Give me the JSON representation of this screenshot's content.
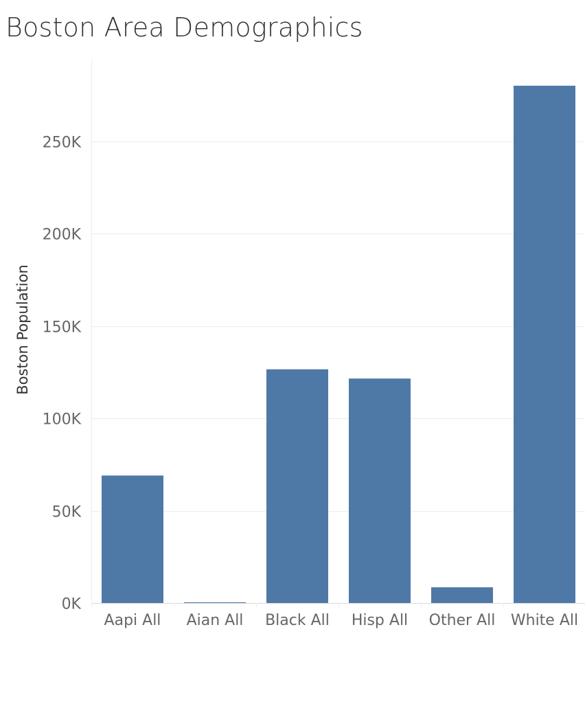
{
  "chart_data": {
    "type": "bar",
    "title": "Boston Area Demographics",
    "xlabel": "",
    "ylabel": "Boston Population",
    "categories": [
      "Aapi All",
      "Aian All",
      "Black All",
      "Hisp All",
      "Other All",
      "White All"
    ],
    "values": [
      69000,
      300,
      126500,
      121500,
      8500,
      280000
    ],
    "y_ticks": [
      {
        "value": 0,
        "label": "0K"
      },
      {
        "value": 50000,
        "label": "50K"
      },
      {
        "value": 100000,
        "label": "100K"
      },
      {
        "value": 150000,
        "label": "150K"
      },
      {
        "value": 200000,
        "label": "200K"
      },
      {
        "value": 250000,
        "label": "250K"
      }
    ],
    "ylim": [
      0,
      290000
    ],
    "grid": true,
    "legend": "none",
    "colors": {
      "bar": "#4e79a7",
      "grid": "#ececec",
      "axis": "#d9d9d9"
    }
  }
}
